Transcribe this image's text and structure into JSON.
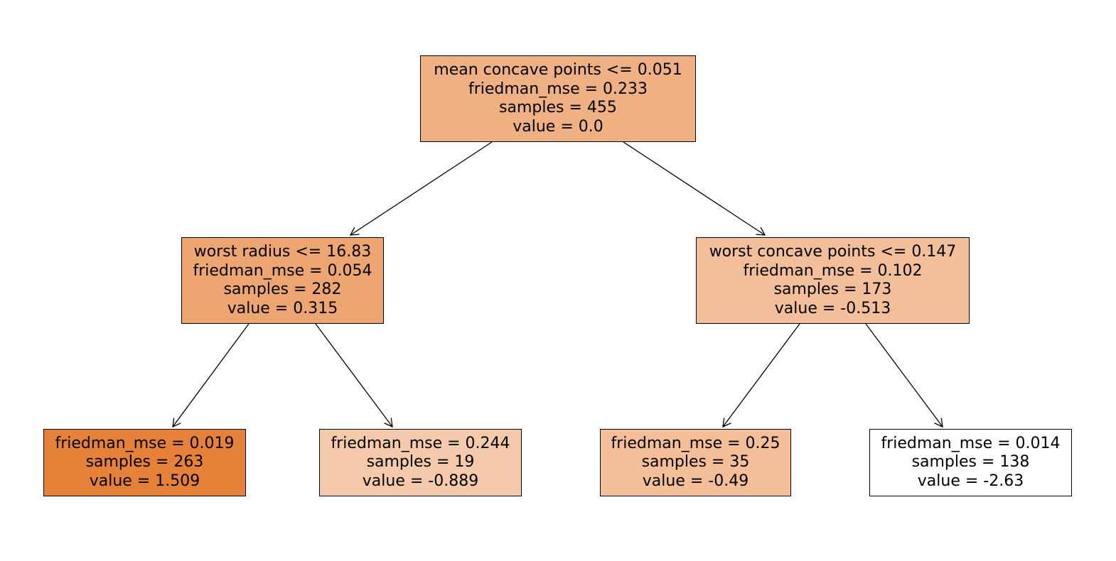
{
  "tree": {
    "root": {
      "lines": [
        "mean concave points <= 0.051",
        "friedman_mse = 0.233",
        "samples = 455",
        "value = 0.0"
      ],
      "fill": "#efb083"
    },
    "left": {
      "lines": [
        "worst radius <= 16.83",
        "friedman_mse = 0.054",
        "samples = 282",
        "value = 0.315"
      ],
      "fill": "#eda572"
    },
    "right": {
      "lines": [
        "worst concave points <= 0.147",
        "friedman_mse = 0.102",
        "samples = 173",
        "value = -0.513"
      ],
      "fill": "#f3bf9a"
    },
    "left_left": {
      "lines": [
        "friedman_mse = 0.019",
        "samples = 263",
        "value = 1.509"
      ],
      "fill": "#e58139"
    },
    "left_right": {
      "lines": [
        "friedman_mse = 0.244",
        "samples = 19",
        "value = -0.889"
      ],
      "fill": "#f5caab"
    },
    "right_left": {
      "lines": [
        "friedman_mse = 0.25",
        "samples = 35",
        "value = -0.49"
      ],
      "fill": "#f3be98"
    },
    "right_right": {
      "lines": [
        "friedman_mse = 0.014",
        "samples = 138",
        "value = -2.63"
      ],
      "fill": "#ffffff"
    }
  },
  "edge_color": "#000000"
}
